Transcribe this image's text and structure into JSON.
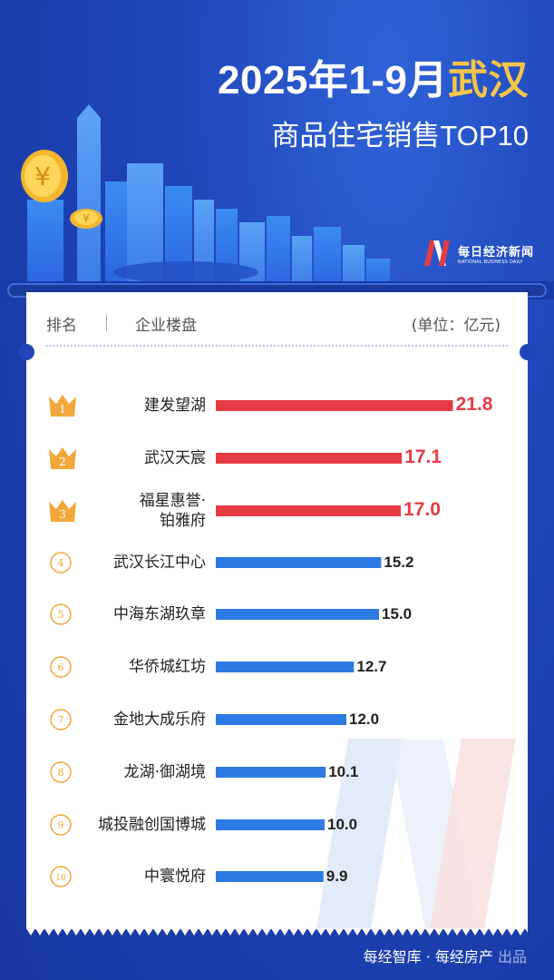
{
  "title": {
    "line1_prefix": "2025年1-9月",
    "line1_accent": "武汉",
    "line2": "商品住宅销售TOP10"
  },
  "brand": {
    "cn": "每日经济新闻",
    "en": "NATIONAL BUSINESS DAILY"
  },
  "header": {
    "rank": "排名",
    "name": "企业楼盘",
    "unit": "(单位：亿元)"
  },
  "footer": {
    "main": "每经智库 · 每经房产",
    "sub": "出品"
  },
  "colors": {
    "top3": "#e63b45",
    "rest": "#2d7ae5",
    "gold": "#f2a73b",
    "bg": "#1f45b8"
  },
  "chart_data": {
    "type": "bar",
    "orientation": "horizontal",
    "unit": "亿元",
    "ranks": [
      "1",
      "2",
      "3",
      "4",
      "5",
      "6",
      "7",
      "8",
      "9",
      "10"
    ],
    "categories": [
      "建发望湖",
      "武汉天宸",
      "福星惠誉·铂雅府",
      "武汉长江中心",
      "中海东湖玖章",
      "华侨城红坊",
      "金地大成乐府",
      "龙湖·御湖境",
      "城投融创国博城",
      "中寰悦府"
    ],
    "category_lines": [
      [
        "建发望湖"
      ],
      [
        "武汉天宸"
      ],
      [
        "福星惠誉·",
        "铂雅府"
      ],
      [
        "武汉长江中心"
      ],
      [
        "中海东湖玖章"
      ],
      [
        "华侨城红坊"
      ],
      [
        "金地大成乐府"
      ],
      [
        "龙湖·御湖境"
      ],
      [
        "城投融创国博城"
      ],
      [
        "中寰悦府"
      ]
    ],
    "values": [
      21.8,
      17.1,
      17.0,
      15.2,
      15.0,
      12.7,
      12.0,
      10.1,
      10.0,
      9.9
    ],
    "value_labels": [
      "21.8",
      "17.1",
      "17.0",
      "15.2",
      "15.0",
      "12.7",
      "12.0",
      "10.1",
      "10.0",
      "9.9"
    ]
  }
}
